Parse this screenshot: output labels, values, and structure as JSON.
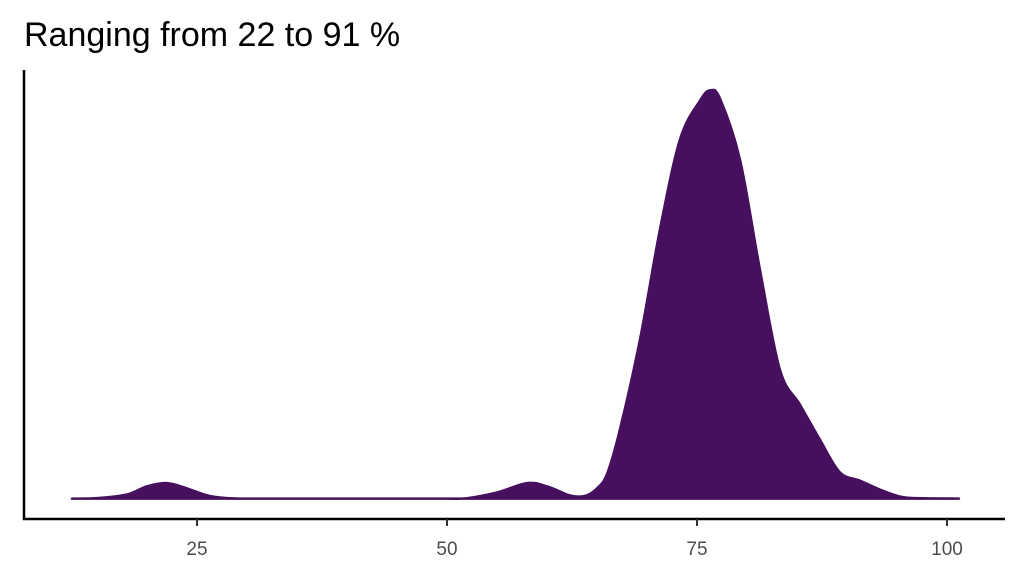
{
  "chart_data": {
    "type": "area",
    "title": "Ranging from 22 to 91 %",
    "x": [
      12.5,
      15,
      18,
      20,
      22,
      24,
      26,
      28,
      30,
      35,
      40,
      45,
      50,
      52,
      55,
      58,
      60,
      62,
      63,
      64,
      65,
      66,
      67.3,
      69.3,
      71.3,
      73.3,
      75.3,
      76.3,
      77.3,
      79.3,
      81.3,
      83.3,
      85.3,
      87.3,
      89.3,
      91.3,
      93.3,
      95.3,
      97,
      101.2
    ],
    "values": [
      0,
      0.001,
      0.01,
      0.03,
      0.038,
      0.025,
      0.008,
      0.001,
      0,
      0,
      0,
      0,
      0,
      0.001,
      0.015,
      0.038,
      0.03,
      0.01,
      0.005,
      0.008,
      0.025,
      0.06,
      0.17,
      0.39,
      0.66,
      0.88,
      0.975,
      1,
      0.98,
      0.83,
      0.56,
      0.315,
      0.23,
      0.144,
      0.064,
      0.044,
      0.022,
      0.005,
      0.001,
      0
    ],
    "color": "#46105e",
    "xlim": [
      7.7,
      105.8
    ],
    "xticks": [
      25,
      50,
      75,
      100
    ],
    "ylim": [
      -0.05,
      1.05
    ]
  }
}
